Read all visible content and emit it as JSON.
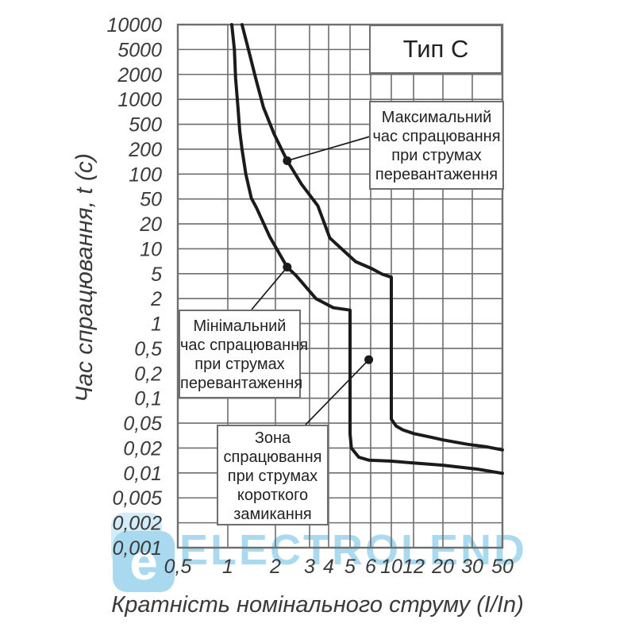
{
  "title_box": {
    "label": "Тип С"
  },
  "watermark": {
    "text": "ELECTROLEND",
    "logo_letter": "e"
  },
  "annotations": {
    "max": {
      "lines": [
        "Максимальний",
        "час спрацювання",
        "при струмах",
        "перевантаження"
      ]
    },
    "min": {
      "lines": [
        "Мінімальний",
        "час спрацювання",
        "при струмах",
        "перевантаження"
      ]
    },
    "zone": {
      "lines": [
        "Зона",
        "спрацювання",
        "при струмах",
        "короткого",
        "замикання"
      ]
    }
  },
  "colors": {
    "curve": "#1b1b1b",
    "grid": "#6e6e6e",
    "text": "#3a3a3a",
    "watermark_blue": "#aadaf0",
    "watermark_blue_light": "#d4ecf8",
    "box_bg": "#ffffff"
  },
  "chart_data": {
    "type": "line",
    "title": "Тип С",
    "xlabel": "Кратність номінального струму (I/In)",
    "ylabel": "Час спрацювання, t (с)",
    "grid": true,
    "x_axis": {
      "scale": "log",
      "range": [
        0.5,
        50
      ],
      "tick_values": [
        0.5,
        1,
        2,
        3,
        4,
        5,
        6,
        10,
        12,
        20,
        30,
        50
      ],
      "tick_labels": [
        "0,5",
        "1",
        "2",
        "3",
        "4",
        "5",
        "6",
        "10",
        "12",
        "20",
        "30",
        "50"
      ]
    },
    "y_axis": {
      "scale": "log-1-2-5",
      "range": [
        0.001,
        10000
      ],
      "tick_values": [
        10000,
        5000,
        2000,
        1000,
        500,
        200,
        100,
        50,
        20,
        10,
        5,
        2,
        1,
        0.5,
        0.2,
        0.1,
        0.05,
        0.02,
        0.01,
        0.005,
        0.002,
        0.001
      ],
      "tick_labels": [
        "10000",
        "5000",
        "2000",
        "1000",
        "500",
        "200",
        "100",
        "50",
        "20",
        "10",
        "5",
        "2",
        "1",
        "0,5",
        "0,2",
        "0,1",
        "0,05",
        "0,02",
        "0,01",
        "0,005",
        "0,002",
        "0,001"
      ]
    },
    "series": [
      {
        "name": "Максимальний час спрацювання при струмах перевантаження",
        "points": [
          [
            1.23,
            10000
          ],
          [
            1.35,
            5000
          ],
          [
            1.5,
            1800
          ],
          [
            1.68,
            800
          ],
          [
            1.96,
            350
          ],
          [
            2.3,
            145
          ],
          [
            2.73,
            75
          ],
          [
            3.4,
            39
          ],
          [
            4.05,
            13.5
          ],
          [
            5.25,
            7
          ],
          [
            6.1,
            5.8
          ],
          [
            8,
            4.9
          ],
          [
            10,
            4.4
          ],
          [
            10,
            0.056
          ],
          [
            10.4,
            0.045
          ],
          [
            11,
            0.039
          ],
          [
            12.1,
            0.034
          ],
          [
            16,
            0.03
          ],
          [
            20,
            0.027
          ],
          [
            28,
            0.023
          ],
          [
            38,
            0.021
          ],
          [
            50,
            0.019
          ]
        ]
      },
      {
        "name": "Мінімальний час спрацювання при струмах перевантаження",
        "points": [
          [
            1.06,
            10000
          ],
          [
            1.1,
            5000
          ],
          [
            1.12,
            1800
          ],
          [
            1.16,
            800
          ],
          [
            1.19,
            380
          ],
          [
            1.23,
            200
          ],
          [
            1.3,
            100
          ],
          [
            1.41,
            51
          ],
          [
            1.52,
            36
          ],
          [
            1.84,
            14
          ],
          [
            2.3,
            6
          ],
          [
            2.55,
            4.7
          ],
          [
            3.3,
            2
          ],
          [
            4.2,
            1.55
          ],
          [
            5,
            1.45
          ],
          [
            5,
            0.034
          ],
          [
            5.06,
            0.02
          ],
          [
            5.4,
            0.0155
          ],
          [
            5.9,
            0.0143
          ],
          [
            9.7,
            0.0139
          ],
          [
            20,
            0.0124
          ],
          [
            33,
            0.0111
          ],
          [
            50,
            0.0099
          ]
        ]
      }
    ],
    "markers": [
      {
        "x": 2.3,
        "t": 145,
        "label": "max-trip-time-point"
      },
      {
        "x": 2.3,
        "t": 6,
        "label": "min-trip-time-point"
      },
      {
        "x": 5.9,
        "t": 0.33,
        "label": "short-circuit-zone-point"
      }
    ]
  }
}
